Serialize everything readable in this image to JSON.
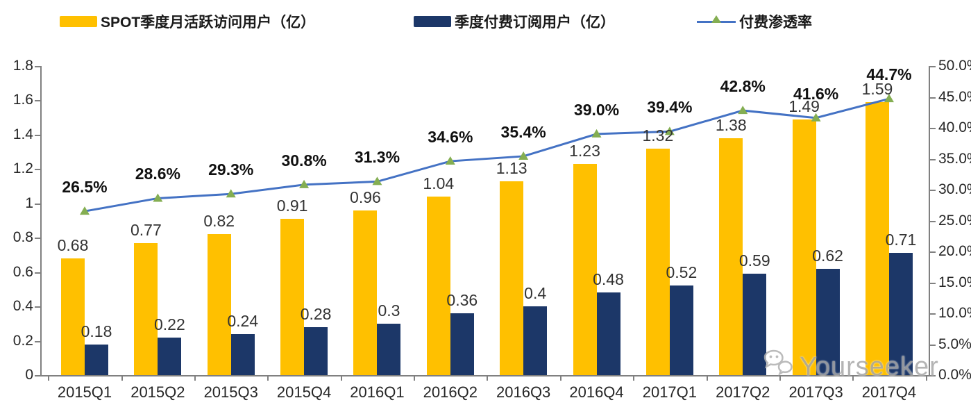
{
  "legend": {
    "items": [
      {
        "label": "SPOT季度月活跃访问用户（亿）",
        "color": "#ffc000",
        "type": "bar-swatch"
      },
      {
        "label": "季度付费订阅用户（亿）",
        "color": "#1c3768",
        "type": "bar-swatch"
      },
      {
        "label": "付费渗透率",
        "color": "#4472c4",
        "marker_color": "#84ae52",
        "type": "line-marker"
      }
    ]
  },
  "watermark": {
    "text": "Yourseeker",
    "icon": "wechat-icon"
  },
  "chart_data": {
    "type": "bar+line combo",
    "title": "",
    "categories": [
      "2015Q1",
      "2015Q2",
      "2015Q3",
      "2015Q4",
      "2016Q1",
      "2016Q2",
      "2016Q3",
      "2016Q4",
      "2017Q1",
      "2017Q2",
      "2017Q3",
      "2017Q4"
    ],
    "series": [
      {
        "name": "SPOT季度月活跃访问用户（亿）",
        "type": "bar",
        "axis": "left",
        "color": "#ffc000",
        "values": [
          0.68,
          0.77,
          0.82,
          0.91,
          0.96,
          1.04,
          1.13,
          1.23,
          1.32,
          1.38,
          1.49,
          1.59
        ]
      },
      {
        "name": "季度付费订阅用户（亿）",
        "type": "bar",
        "axis": "left",
        "color": "#1c3768",
        "values": [
          0.18,
          0.22,
          0.24,
          0.28,
          0.3,
          0.36,
          0.4,
          0.48,
          0.52,
          0.59,
          0.62,
          0.71
        ]
      },
      {
        "name": "付费渗透率",
        "type": "line",
        "axis": "right",
        "color": "#4472c4",
        "marker": "triangle",
        "marker_color": "#84ae52",
        "values": [
          26.5,
          28.6,
          29.3,
          30.8,
          31.3,
          34.6,
          35.4,
          39.0,
          39.4,
          42.8,
          41.6,
          44.7
        ],
        "labels": [
          "26.5%",
          "28.6%",
          "29.3%",
          "30.8%",
          "31.3%",
          "34.6%",
          "35.4%",
          "39.0%",
          "39.4%",
          "42.8%",
          "41.6%",
          "44.7%"
        ]
      }
    ],
    "left_axis": {
      "min": 0,
      "max": 1.8,
      "ticks": [
        "0",
        "0.2",
        "0.4",
        "0.6",
        "0.8",
        "1",
        "1.2",
        "1.4",
        "1.6",
        "1.8"
      ]
    },
    "right_axis": {
      "min": 0,
      "max": 50,
      "ticks": [
        "0.0%",
        "5.0%",
        "10.0%",
        "15.0%",
        "20.0%",
        "25.0%",
        "30.0%",
        "35.0%",
        "40.0%",
        "45.0%",
        "50.0%"
      ]
    },
    "grid": false,
    "legend_position": "top"
  }
}
